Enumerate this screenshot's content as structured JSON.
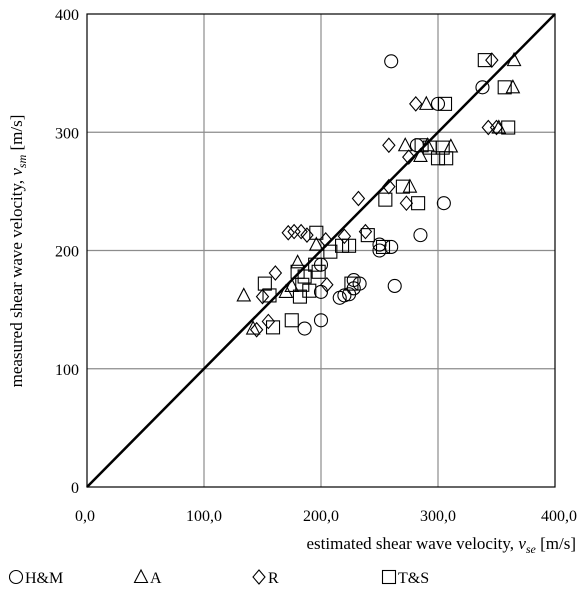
{
  "chart_data": {
    "type": "scatter",
    "xlabel_text": "estimated shear wave velocity, ",
    "xlabel_var": "v",
    "xlabel_sub": "se",
    "xlabel_unit": " [m/s]",
    "ylabel_text": "measured shear wave velocity, ",
    "ylabel_var": "v",
    "ylabel_sub": "sm",
    "ylabel_unit": " [m/s]",
    "xlim": [
      0,
      400
    ],
    "ylim": [
      0,
      400
    ],
    "x_ticks": [
      "0,0",
      "100,0",
      "200,0",
      "300,0",
      "400,0"
    ],
    "y_ticks": [
      "0",
      "100",
      "200",
      "300",
      "400"
    ],
    "grid": true,
    "legend_position": "bottom",
    "reference_line": {
      "from": [
        0,
        0
      ],
      "to": [
        400,
        400
      ]
    },
    "series": [
      {
        "name": "H&M",
        "marker": "circle",
        "points": [
          [
            260,
            360
          ],
          [
            250,
            200
          ],
          [
            260,
            203
          ],
          [
            285,
            213
          ],
          [
            305,
            240
          ],
          [
            263,
            170
          ],
          [
            228,
            175
          ],
          [
            233,
            172
          ],
          [
            228,
            168
          ],
          [
            220,
            162
          ],
          [
            216,
            160
          ],
          [
            224,
            163
          ],
          [
            200,
            188
          ],
          [
            200,
            165
          ],
          [
            200,
            141
          ],
          [
            186,
            134
          ],
          [
            250,
            205
          ],
          [
            300,
            324
          ],
          [
            282,
            289
          ],
          [
            338,
            338
          ]
        ]
      },
      {
        "name": "A",
        "marker": "triangle",
        "points": [
          [
            134,
            162
          ],
          [
            142,
            134
          ],
          [
            170,
            165
          ],
          [
            175,
            170
          ],
          [
            180,
            190
          ],
          [
            196,
            205
          ],
          [
            276,
            254
          ],
          [
            285,
            280
          ],
          [
            311,
            288
          ],
          [
            365,
            361
          ],
          [
            364,
            338
          ],
          [
            290,
            324
          ],
          [
            352,
            304
          ],
          [
            291,
            289
          ],
          [
            272,
            289
          ]
        ]
      },
      {
        "name": "R",
        "marker": "diamond",
        "points": [
          [
            145,
            133
          ],
          [
            150,
            161
          ],
          [
            155,
            140
          ],
          [
            161,
            181
          ],
          [
            172,
            215
          ],
          [
            177,
            216
          ],
          [
            183,
            216
          ],
          [
            188,
            213
          ],
          [
            204,
            209
          ],
          [
            205,
            171
          ],
          [
            220,
            212
          ],
          [
            232,
            244
          ],
          [
            238,
            216
          ],
          [
            258,
            254
          ],
          [
            258,
            289
          ],
          [
            273,
            240
          ],
          [
            275,
            279
          ],
          [
            281,
            324
          ],
          [
            343,
            304
          ],
          [
            346,
            361
          ],
          [
            350,
            304
          ]
        ]
      },
      {
        "name": "T&S",
        "marker": "square",
        "points": [
          [
            152,
            172
          ],
          [
            156,
            162
          ],
          [
            159,
            135
          ],
          [
            175,
            141
          ],
          [
            180,
            182
          ],
          [
            182,
            161
          ],
          [
            184,
            171
          ],
          [
            186,
            178
          ],
          [
            190,
            166
          ],
          [
            195,
            188
          ],
          [
            196,
            215
          ],
          [
            198,
            182
          ],
          [
            208,
            199
          ],
          [
            218,
            204
          ],
          [
            224,
            204
          ],
          [
            226,
            172
          ],
          [
            240,
            213
          ],
          [
            255,
            243
          ],
          [
            253,
            203
          ],
          [
            270,
            254
          ],
          [
            283,
            240
          ],
          [
            286,
            289
          ],
          [
            293,
            287
          ],
          [
            300,
            278
          ],
          [
            304,
            287
          ],
          [
            307,
            278
          ],
          [
            306,
            324
          ],
          [
            340,
            361
          ],
          [
            357,
            338
          ],
          [
            360,
            304
          ]
        ]
      }
    ]
  }
}
